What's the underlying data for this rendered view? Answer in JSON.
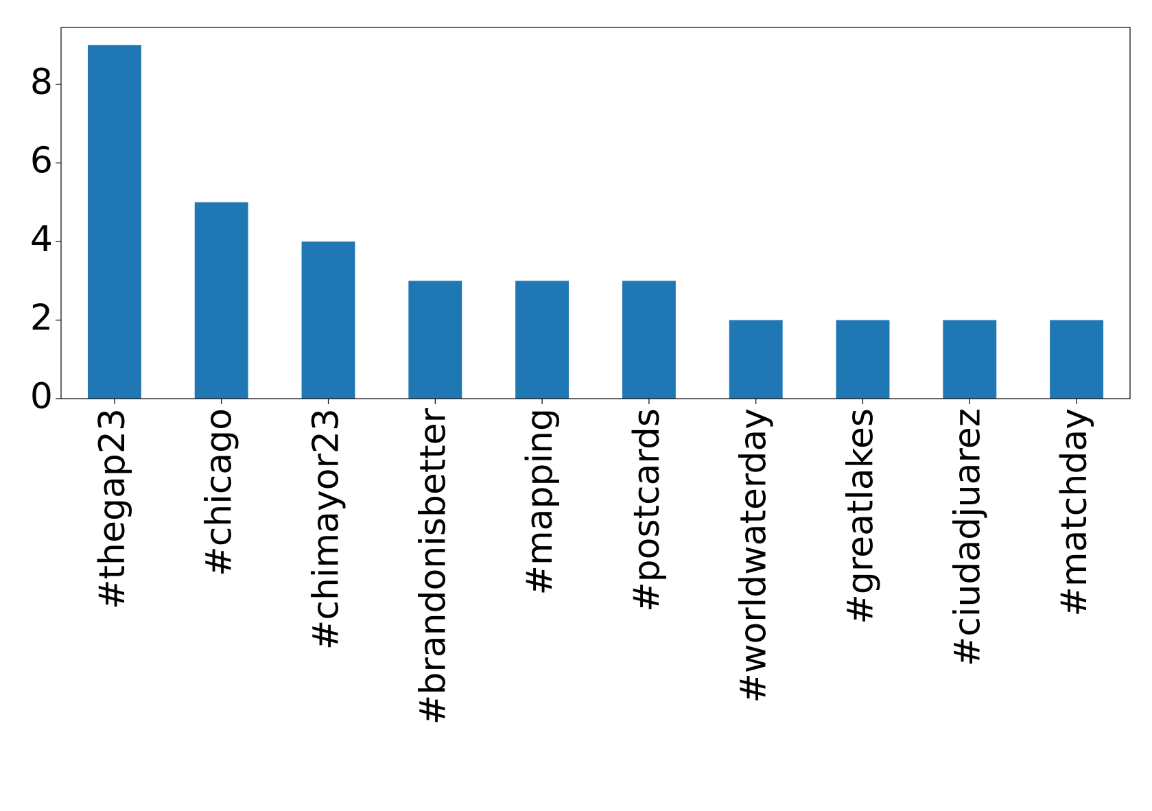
{
  "chart_data": {
    "type": "bar",
    "categories": [
      "#thegap23",
      "#chicago",
      "#chimayor23",
      "#brandonisbetter",
      "#mapping",
      "#postcards",
      "#worldwaterday",
      "#greatlakes",
      "#ciudadjuarez",
      "#matchday"
    ],
    "values": [
      9,
      5,
      4,
      3,
      3,
      3,
      2,
      2,
      2,
      2
    ],
    "color": "#1f77b4",
    "ylim": [
      0,
      9.45
    ],
    "yticks": [
      0,
      2,
      4,
      6,
      8
    ],
    "grid": false
  }
}
